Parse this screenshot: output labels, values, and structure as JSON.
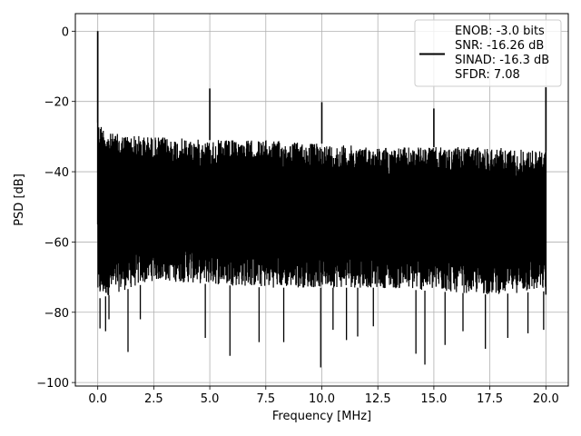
{
  "chart_data": {
    "type": "line",
    "xlabel": "Frequency [MHz]",
    "ylabel": "PSD [dB]",
    "xlim": [
      -1,
      21
    ],
    "ylim": [
      -101,
      5
    ],
    "xticks": [
      0.0,
      2.5,
      5.0,
      7.5,
      10.0,
      12.5,
      15.0,
      17.5,
      20.0
    ],
    "xtick_labels": [
      "0.0",
      "2.5",
      "5.0",
      "7.5",
      "10.0",
      "12.5",
      "15.0",
      "17.5",
      "20.0"
    ],
    "yticks": [
      0,
      -20,
      -40,
      -60,
      -80,
      -100
    ],
    "ytick_labels": [
      "0",
      "−20",
      "−40",
      "−60",
      "−80",
      "−100"
    ],
    "grid": true,
    "legend_placement": "upper-right",
    "line_color": "#000000",
    "series": [
      {
        "name": "ENOB: -3.0 bits\nSNR: -16.26 dB\nSINAD: -16.3 dB\nSFDR: 7.08",
        "noise_band": {
          "x_range": [
            0,
            20
          ],
          "upper_envelope": [
            [
              0.1,
              -26
            ],
            [
              0.5,
              -29
            ],
            [
              2.5,
              -30
            ],
            [
              5.0,
              -31
            ],
            [
              7.5,
              -31
            ],
            [
              10.0,
              -32
            ],
            [
              12.5,
              -33
            ],
            [
              15.0,
              -33
            ],
            [
              17.5,
              -33
            ],
            [
              20.0,
              -34
            ]
          ],
          "lower_envelope": [
            [
              0.1,
              -76
            ],
            [
              2.5,
              -71
            ],
            [
              5.0,
              -72
            ],
            [
              7.5,
              -73
            ],
            [
              10.0,
              -73
            ],
            [
              12.5,
              -73
            ],
            [
              15.0,
              -74
            ],
            [
              17.5,
              -75
            ],
            [
              20.0,
              -74
            ]
          ],
          "median_level": -50
        },
        "peaks": [
          {
            "x": 0.0,
            "y": 0.0
          },
          {
            "x": 5.0,
            "y": -16.3
          },
          {
            "x": 10.0,
            "y": -20.2
          },
          {
            "x": 15.0,
            "y": -22.0
          },
          {
            "x": 20.0,
            "y": -16.0
          }
        ],
        "dips": [
          {
            "x": 0.1,
            "y": -84.6
          },
          {
            "x": 0.35,
            "y": -85.4
          },
          {
            "x": 0.5,
            "y": -82.0
          },
          {
            "x": 1.35,
            "y": -91.3
          },
          {
            "x": 1.9,
            "y": -82.0
          },
          {
            "x": 4.8,
            "y": -87.3
          },
          {
            "x": 5.9,
            "y": -92.4
          },
          {
            "x": 7.2,
            "y": -88.5
          },
          {
            "x": 8.3,
            "y": -88.5
          },
          {
            "x": 9.95,
            "y": -95.7
          },
          {
            "x": 10.5,
            "y": -85.0
          },
          {
            "x": 11.1,
            "y": -87.9
          },
          {
            "x": 11.6,
            "y": -86.9
          },
          {
            "x": 12.3,
            "y": -84.0
          },
          {
            "x": 14.2,
            "y": -91.8
          },
          {
            "x": 14.6,
            "y": -94.9
          },
          {
            "x": 15.5,
            "y": -89.3
          },
          {
            "x": 16.3,
            "y": -85.4
          },
          {
            "x": 17.3,
            "y": -90.4
          },
          {
            "x": 18.3,
            "y": -87.3
          },
          {
            "x": 19.2,
            "y": -86.0
          },
          {
            "x": 19.9,
            "y": -85.0
          }
        ]
      }
    ]
  }
}
